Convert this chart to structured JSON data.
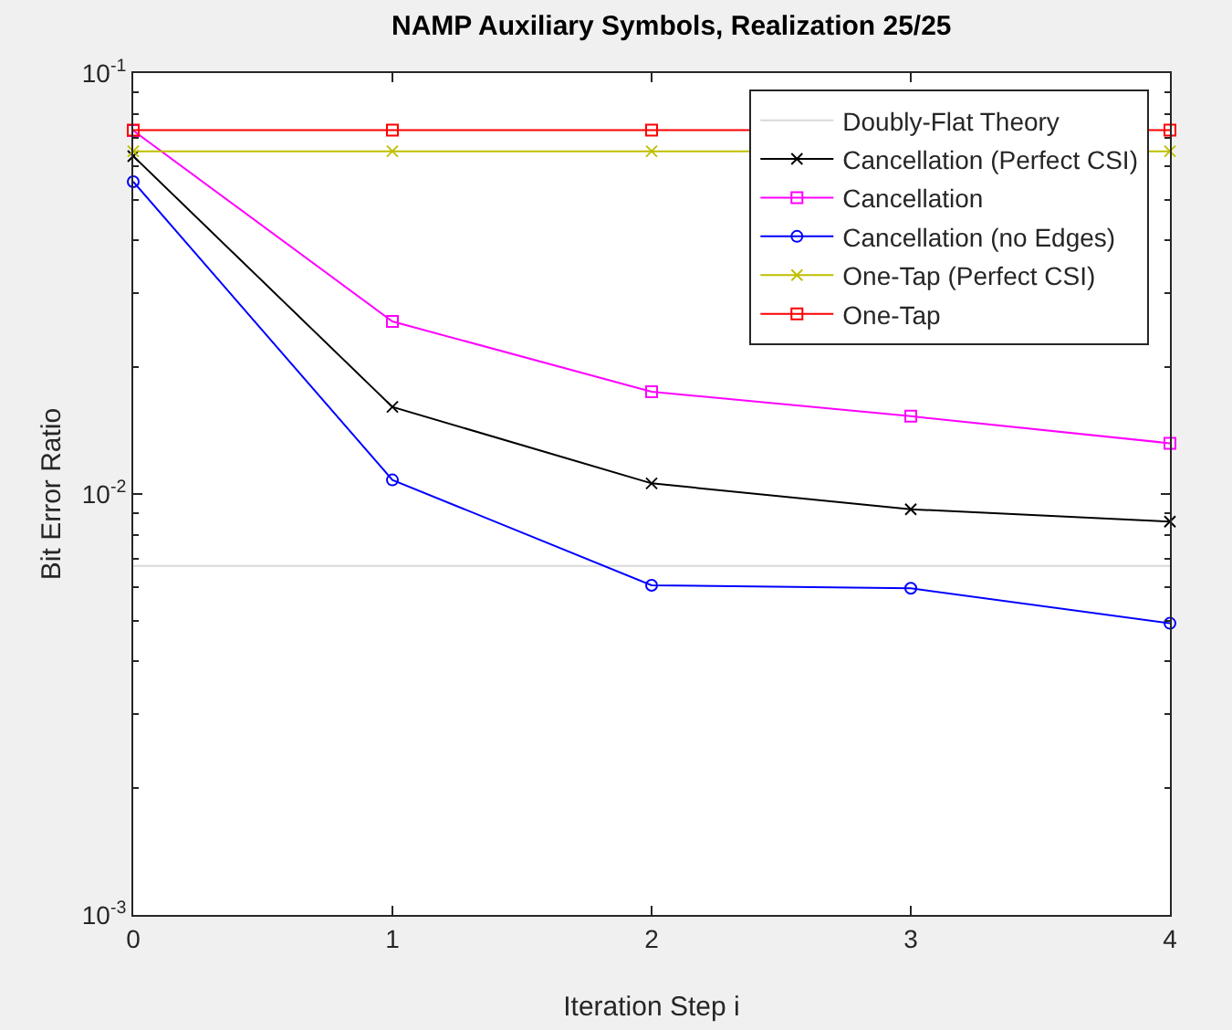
{
  "chart_data": {
    "type": "line",
    "title": "NAMP Auxiliary Symbols, Realization 25/25",
    "xlabel": "Iteration Step i",
    "ylabel": "Bit Error Ratio",
    "x": [
      0,
      1,
      2,
      3,
      4
    ],
    "xlim": [
      0,
      4
    ],
    "xticks": [
      0,
      1,
      2,
      3,
      4
    ],
    "log": "y",
    "ylim": [
      0.001,
      0.1
    ],
    "yticks": [
      {
        "value": 0.001,
        "label": "10$^{-3}$"
      },
      {
        "value": 0.01,
        "label": "10$^{-2}$"
      },
      {
        "value": 0.1,
        "label": "10$^{-1}$"
      }
    ],
    "grid": false,
    "legend": "top right",
    "series": [
      {
        "name": "Doubly-Flat Theory",
        "color": "#d9d9d9",
        "marker": "none",
        "values": [
          0.00675,
          0.00675,
          0.00675,
          0.00675,
          0.00675
        ]
      },
      {
        "name": "Cancellation (Perfect CSI)",
        "color": "#000000",
        "marker": "cross",
        "values": [
          0.0635,
          0.0161,
          0.0106,
          0.0092,
          0.0086
        ]
      },
      {
        "name": "Cancellation",
        "color": "#ff00ff",
        "marker": "square",
        "values": [
          0.073,
          0.0257,
          0.0175,
          0.0153,
          0.0132
        ]
      },
      {
        "name": "Cancellation (no Edges)",
        "color": "#0000ff",
        "marker": "circle",
        "values": [
          0.0552,
          0.0108,
          0.00607,
          0.00597,
          0.00493
        ]
      },
      {
        "name": "One-Tap (Perfect CSI)",
        "color": "#bfbf00",
        "marker": "cross",
        "values": [
          0.0652,
          0.0652,
          0.0652,
          null,
          0.0652
        ]
      },
      {
        "name": "One-Tap",
        "color": "#ff0000",
        "marker": "square",
        "values": [
          0.0732,
          0.0732,
          0.0732,
          null,
          0.0732
        ]
      }
    ]
  }
}
